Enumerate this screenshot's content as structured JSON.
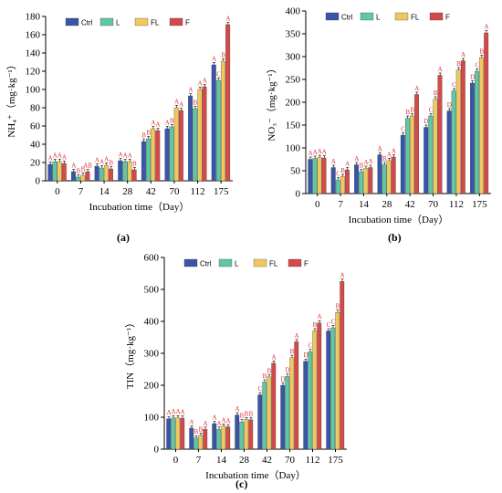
{
  "colors": {
    "Ctrl": "#3a55a8",
    "L": "#5fc7a6",
    "FL": "#f0c860",
    "F": "#d44a48",
    "sig": "#e03030"
  },
  "chart_data": [
    {
      "type": "bar",
      "panel_label": "(a)",
      "xlabel": "Incubation time（Day）",
      "ylabel": "NH₄⁺（mg·kg⁻¹）",
      "categories": [
        "0",
        "7",
        "14",
        "28",
        "42",
        "70",
        "112",
        "175"
      ],
      "ylim": [
        0,
        180
      ],
      "yticks": [
        0,
        20,
        40,
        60,
        80,
        100,
        120,
        140,
        160,
        180
      ],
      "legend_position": "top-left",
      "series": [
        {
          "name": "Ctrl",
          "values": [
            18,
            10,
            16,
            22,
            43,
            57,
            93,
            127
          ],
          "letters": [
            "A",
            "A",
            "A",
            "A",
            "B",
            "A",
            "A",
            "A"
          ]
        },
        {
          "name": "L",
          "values": [
            21,
            4,
            14,
            21,
            46,
            59,
            79,
            110
          ],
          "letters": [
            "A",
            "B",
            "A",
            "A",
            "B",
            "B",
            "B",
            "C"
          ]
        },
        {
          "name": "FL",
          "values": [
            21,
            6,
            17,
            21,
            57,
            80,
            100,
            131
          ],
          "letters": [
            "A",
            "B",
            "A",
            "A",
            "A",
            "A",
            "A",
            "B"
          ]
        },
        {
          "name": "F",
          "values": [
            19,
            10,
            13,
            12,
            55,
            77,
            103,
            171
          ],
          "letters": [
            "A",
            "AB",
            "B",
            "B",
            "A",
            "A",
            "A",
            "A"
          ]
        }
      ]
    },
    {
      "type": "bar",
      "panel_label": "(b)",
      "xlabel": "Incubation time（Day）",
      "ylabel": "NO₃⁻（mg·kg⁻¹）",
      "categories": [
        "0",
        "7",
        "14",
        "28",
        "42",
        "70",
        "112",
        "175"
      ],
      "ylim": [
        0,
        400
      ],
      "yticks": [
        0,
        50,
        100,
        150,
        200,
        250,
        300,
        350,
        400
      ],
      "legend_position": "top-left",
      "series": [
        {
          "name": "Ctrl",
          "values": [
            75,
            57,
            63,
            85,
            128,
            145,
            181,
            242
          ],
          "letters": [
            "A",
            "A",
            "A",
            "A",
            "C",
            "D",
            "D",
            "D"
          ]
        },
        {
          "name": "L",
          "values": [
            77,
            30,
            48,
            63,
            165,
            170,
            225,
            268
          ],
          "letters": [
            "A",
            "C",
            "B",
            "B",
            "B",
            "C",
            "C",
            "C"
          ]
        },
        {
          "name": "FL",
          "values": [
            79,
            37,
            55,
            72,
            170,
            207,
            271,
            298
          ],
          "letters": [
            "A",
            "B",
            "A",
            "A",
            "B",
            "B",
            "B",
            "B"
          ]
        },
        {
          "name": "F",
          "values": [
            78,
            52,
            57,
            80,
            217,
            259,
            291,
            352
          ],
          "letters": [
            "A",
            "A",
            "A",
            "A",
            "A",
            "A",
            "A",
            "A"
          ]
        }
      ]
    },
    {
      "type": "bar",
      "panel_label": "(c)",
      "xlabel": "Incubation time（Day）",
      "ylabel": "TIN（mg·kg⁻¹）",
      "categories": [
        "0",
        "7",
        "14",
        "28",
        "42",
        "70",
        "112",
        "175"
      ],
      "ylim": [
        0,
        600
      ],
      "yticks": [
        0,
        100,
        200,
        300,
        400,
        500,
        600
      ],
      "legend_position": "top-left",
      "series": [
        {
          "name": "Ctrl",
          "values": [
            95,
            66,
            80,
            107,
            170,
            200,
            275,
            370
          ],
          "letters": [
            "A",
            "A",
            "A",
            "A",
            "C",
            "D",
            "D",
            "C"
          ]
        },
        {
          "name": "L",
          "values": [
            98,
            35,
            62,
            85,
            210,
            228,
            305,
            380
          ],
          "letters": [
            "A",
            "B",
            "A",
            "B",
            "B",
            "D",
            "C",
            "C"
          ]
        },
        {
          "name": "FL",
          "values": [
            98,
            43,
            72,
            92,
            226,
            287,
            370,
            428
          ],
          "letters": [
            "A",
            "B",
            "A",
            "B",
            "B",
            "B",
            "B",
            "B"
          ]
        },
        {
          "name": "F",
          "values": [
            97,
            62,
            70,
            92,
            269,
            336,
            395,
            525
          ],
          "letters": [
            "A",
            "A",
            "A",
            "B",
            "A",
            "A",
            "A",
            "A"
          ]
        }
      ]
    }
  ]
}
